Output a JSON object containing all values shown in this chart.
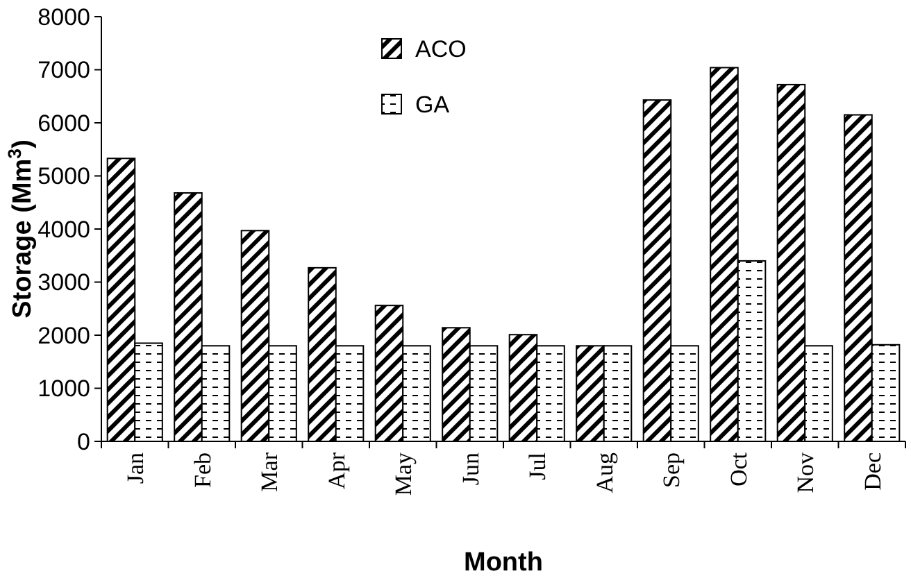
{
  "chart_data": {
    "type": "bar",
    "xlabel": "Month",
    "ylabel": "Storage (Mm$^{3}$)",
    "categories": [
      "Jan",
      "Feb",
      "Mar",
      "Apr",
      "May",
      "Jun",
      "Jul",
      "Aug",
      "Sep",
      "Oct",
      "Nov",
      "Dec"
    ],
    "series": [
      {
        "name": "ACO",
        "color": "#000000",
        "values": [
          5330,
          4680,
          3970,
          3270,
          2560,
          2140,
          2010,
          1800,
          6430,
          7040,
          6720,
          6150
        ]
      },
      {
        "name": "GA",
        "color": "#000000",
        "values": [
          1850,
          1800,
          1800,
          1800,
          1800,
          1800,
          1800,
          1800,
          1800,
          3400,
          1800,
          1820
        ]
      }
    ],
    "ylim": [
      0,
      8000
    ],
    "yticks": [
      0,
      1000,
      2000,
      3000,
      4000,
      5000,
      6000,
      7000,
      8000
    ],
    "grid": false,
    "legend": "top"
  }
}
